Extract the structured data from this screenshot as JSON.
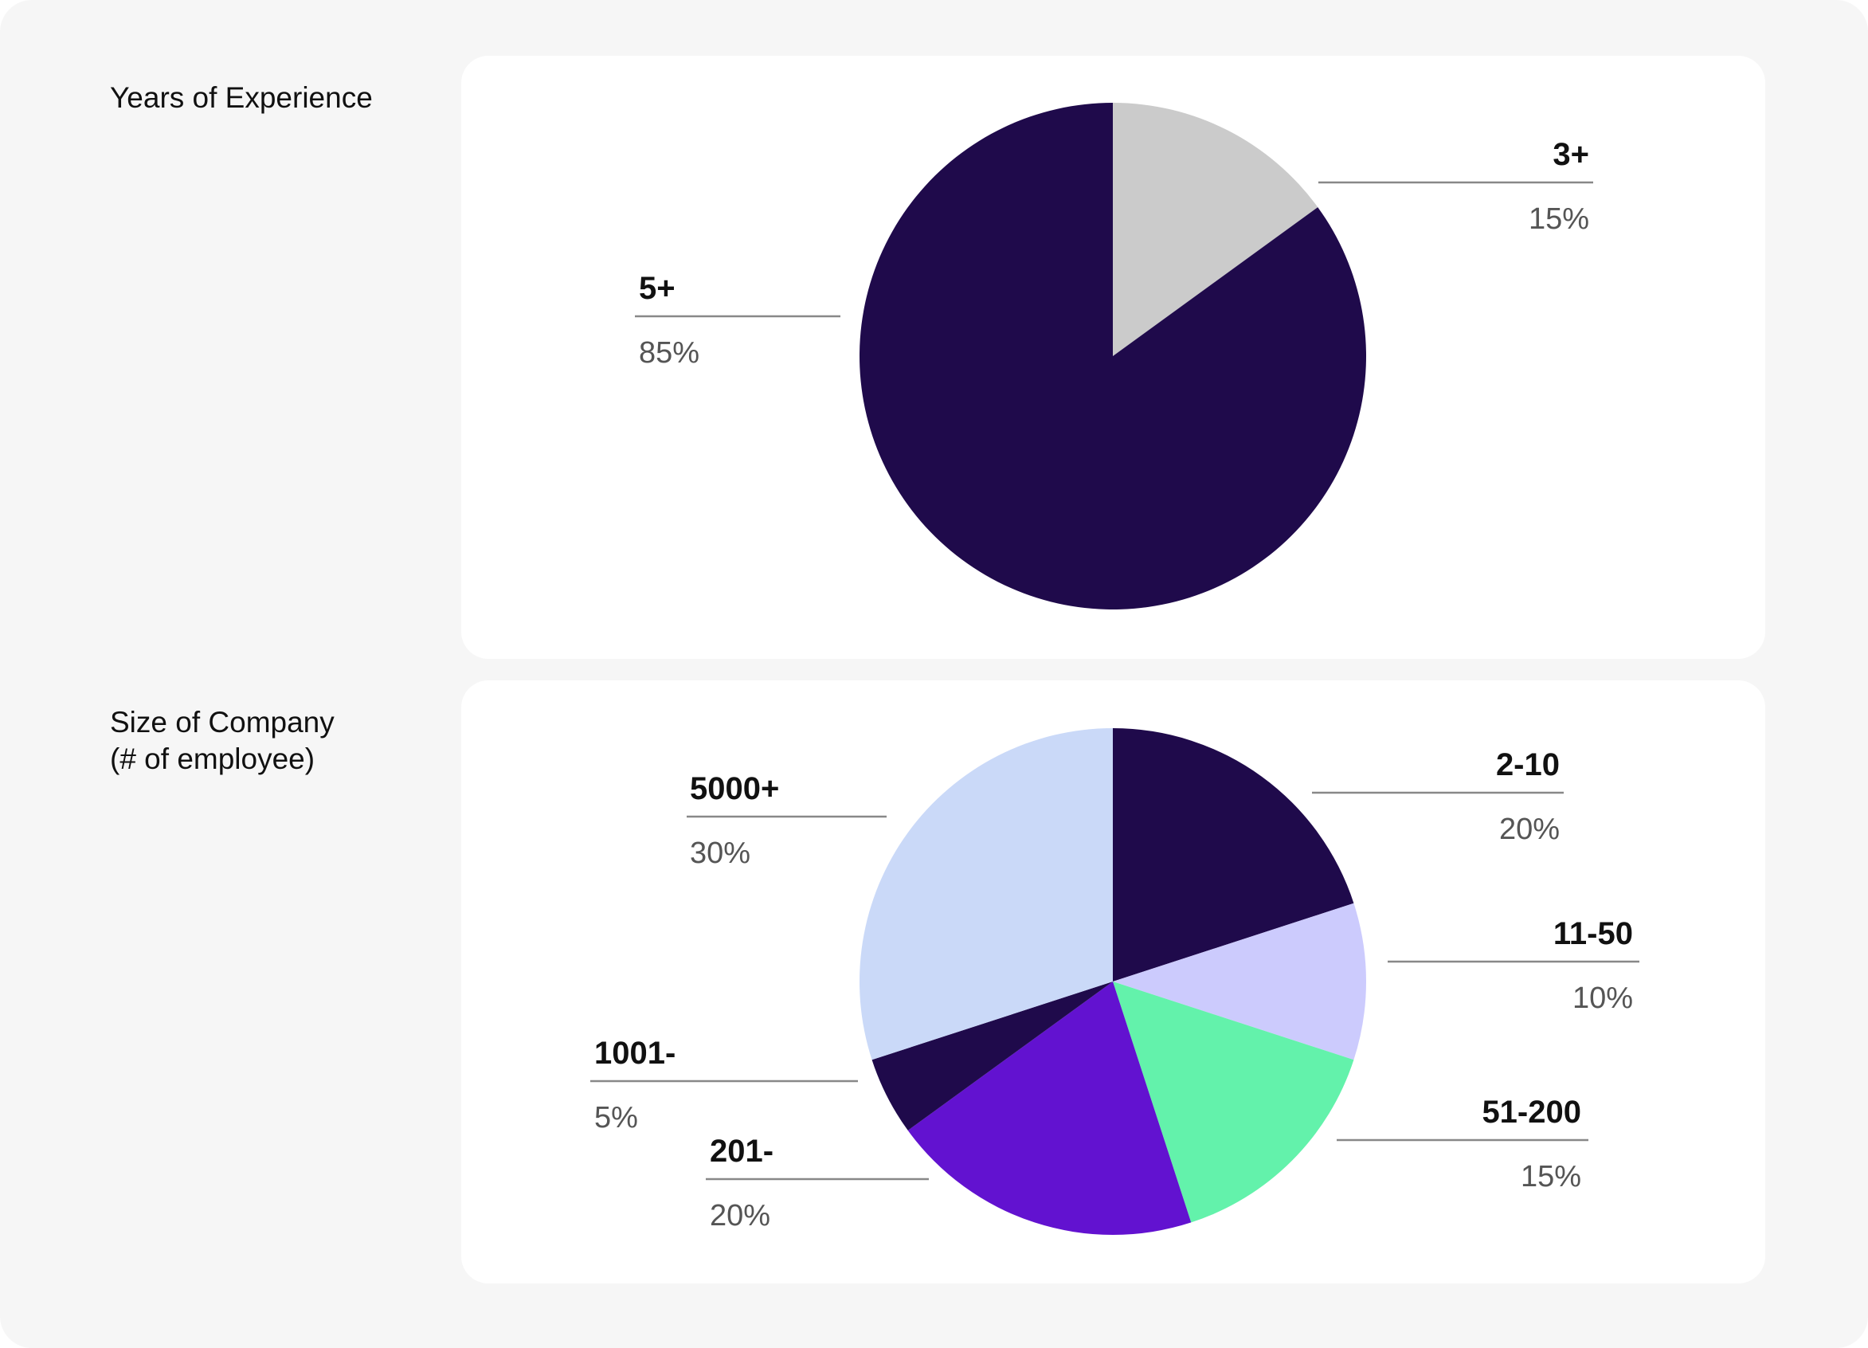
{
  "chart_data": [
    {
      "type": "pie",
      "title": "Years of Experience",
      "slices": [
        {
          "label": "3+",
          "value": 15,
          "value_label": "15%",
          "color": "#cbcbcb"
        },
        {
          "label": "5+",
          "value": 85,
          "value_label": "85%",
          "color": "#1f0a4b"
        }
      ]
    },
    {
      "type": "pie",
      "title": "Size of Company\n(# of employee)",
      "slices": [
        {
          "label": "2-10",
          "value": 20,
          "value_label": "20%",
          "color": "#1f0a4b"
        },
        {
          "label": "11-50",
          "value": 10,
          "value_label": "10%",
          "color": "#cccbfd"
        },
        {
          "label": "51-200",
          "value": 15,
          "value_label": "15%",
          "color": "#63f2ab"
        },
        {
          "label": "201-",
          "value": 20,
          "value_label": "20%",
          "color": "#6212d0"
        },
        {
          "label": "1001-",
          "value": 5,
          "value_label": "5%",
          "color": "#1f0a4b"
        },
        {
          "label": "5000+",
          "value": 30,
          "value_label": "30%",
          "color": "#cad9f8"
        }
      ]
    }
  ]
}
